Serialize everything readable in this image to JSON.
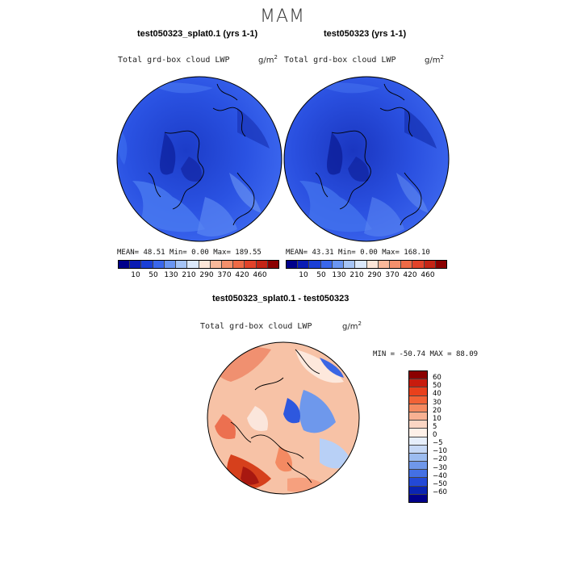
{
  "figure": {
    "season": "MAM"
  },
  "panels": [
    {
      "title": "test050323_splat0.1 (yrs 1-1)",
      "variable": "Total grd-box cloud LWP",
      "units": "g/m",
      "units_exp": "2",
      "stats": "MEAN=  48.51  Min=   0.00  Max= 189.55"
    },
    {
      "title": "test050323 (yrs 1-1)",
      "variable": "Total grd-box cloud LWP",
      "units": "g/m",
      "units_exp": "2",
      "stats": "MEAN=  43.31  Min=   0.00  Max= 168.10"
    },
    {
      "title": "test050323_splat0.1 - test050323",
      "variable": "Total grd-box cloud LWP",
      "units": "g/m",
      "units_exp": "2",
      "stats": "MIN = -50.74  MAX =  88.09"
    }
  ],
  "colorbar_abs": {
    "colors": [
      "#00008b",
      "#0a1cb4",
      "#1a3fd6",
      "#3a67ec",
      "#6b96f2",
      "#a6c4f6",
      "#dbe8fb",
      "#fde6d8",
      "#f8b89a",
      "#f4906c",
      "#ee6a46",
      "#e2432a",
      "#c42516",
      "#8b0000"
    ],
    "ticks": [
      "10",
      "50",
      "130",
      "210",
      "290",
      "370",
      "420",
      "460"
    ]
  },
  "colorbar_diff": {
    "colors": [
      "#8b0000",
      "#c81c0e",
      "#e8401c",
      "#f26236",
      "#f58a60",
      "#f8b192",
      "#fbd6c4",
      "#fdf0e8",
      "#e6eefb",
      "#c6d8f6",
      "#9cbcf0",
      "#6f97ea",
      "#4470e4",
      "#2349d6",
      "#0a24b2",
      "#00008b"
    ],
    "ticks": [
      "60",
      "50",
      "40",
      "30",
      "20",
      "10",
      "5",
      "0",
      "−5",
      "−10",
      "−20",
      "−30",
      "−40",
      "−50",
      "−60"
    ]
  },
  "palette": {
    "panel1_base": "#2a4fe0",
    "panel2_base": "#2a4fe0",
    "diff_base": "#f6c4aa"
  }
}
